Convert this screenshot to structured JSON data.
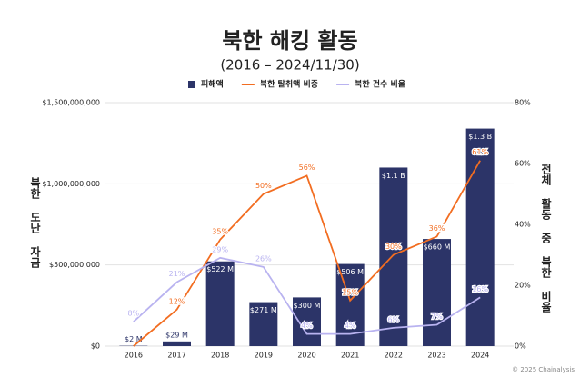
{
  "chart_data": {
    "type": "bar-line",
    "title": "북한 해킹 활동",
    "subtitle": "(2016 – 2024/11/30)",
    "y_label": "북한 도난 자금",
    "y2_label": "전체 활동 중 북한 비율",
    "footer": "© 2025 Chainalysis",
    "categories": [
      "2016",
      "2017",
      "2018",
      "2019",
      "2020",
      "2021",
      "2022",
      "2023",
      "2024"
    ],
    "series": [
      {
        "name": "피해액",
        "type": "bar",
        "color": "#2c3468",
        "values": [
          2000000,
          29000000,
          522000000,
          271000000,
          300000000,
          506000000,
          1100000000,
          660000000,
          1340000000
        ],
        "value_labels": [
          "$2 M",
          "$29 M",
          "$522 M",
          "$271 M",
          "$300 M",
          "$506 M",
          "$1.1 B",
          "$660 M",
          "$1.3 B"
        ]
      },
      {
        "name": "북한 탈취액 비중",
        "type": "line",
        "axis": "y2",
        "color": "#f26d21",
        "values": [
          0,
          12,
          35,
          50,
          56,
          15,
          30,
          36,
          61
        ],
        "value_labels": [
          null,
          "12%",
          "35%",
          "50%",
          "56%",
          "15%",
          "30%",
          "36%",
          "61%"
        ]
      },
      {
        "name": "북한 건수 비율",
        "type": "line",
        "axis": "y2",
        "color": "#b9b3f0",
        "values": [
          8,
          21,
          29,
          26,
          4,
          4,
          6,
          7,
          16
        ],
        "value_labels": [
          "8%",
          "21%",
          "29%",
          "26%",
          "4%",
          "4%",
          "6%",
          "7%",
          "16%"
        ]
      }
    ],
    "ylim": [
      0,
      1500000000
    ],
    "yticks": [
      {
        "value": 0,
        "label": "$0"
      },
      {
        "value": 500000000,
        "label": "$500,000,000"
      },
      {
        "value": 1000000000,
        "label": "$1,000,000,000"
      },
      {
        "value": 1500000000,
        "label": "$1,500,000,000"
      }
    ],
    "y2lim": [
      0,
      80
    ],
    "y2ticks": [
      {
        "value": 0,
        "label": "0%"
      },
      {
        "value": 20,
        "label": "20%"
      },
      {
        "value": 40,
        "label": "40%"
      },
      {
        "value": 60,
        "label": "60%"
      },
      {
        "value": 80,
        "label": "80%"
      }
    ],
    "grid": true
  }
}
